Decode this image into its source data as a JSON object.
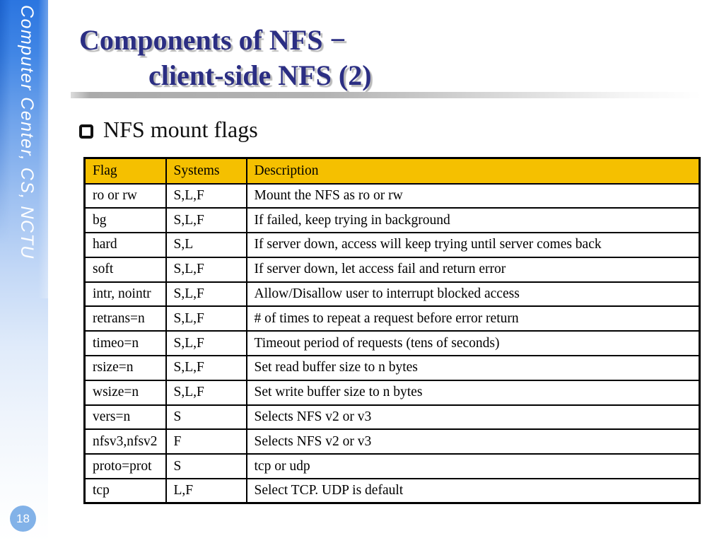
{
  "sidebar": {
    "text": "Computer Center, CS, NCTU"
  },
  "page_badge": {
    "number": "18"
  },
  "title": {
    "line1": "Components of NFS −",
    "line2": "client-side NFS (2)"
  },
  "content": {
    "bullet_text": "NFS mount flags"
  },
  "table": {
    "headers": [
      "Flag",
      "Systems",
      "Description"
    ],
    "rows": [
      [
        "ro or rw",
        "S,L,F",
        "Mount the NFS as ro or rw"
      ],
      [
        "bg",
        "S,L,F",
        "If failed, keep trying in background"
      ],
      [
        "hard",
        "S,L",
        "If server down, access will keep trying until server comes back"
      ],
      [
        "soft",
        "S,L,F",
        "If server down, let access fail and return error"
      ],
      [
        "intr, nointr",
        "S,L,F",
        "Allow/Disallow user to interrupt blocked access"
      ],
      [
        "retrans=n",
        "S,L,F",
        "# of times to repeat a request before error return"
      ],
      [
        "timeo=n",
        "S,L,F",
        "Timeout period of requests (tens of seconds)"
      ],
      [
        "rsize=n",
        "S,L,F",
        "Set read buffer size to n bytes"
      ],
      [
        "wsize=n",
        "S,L,F",
        "Set write buffer size to n bytes"
      ],
      [
        "vers=n",
        "S",
        "Selects NFS v2 or v3"
      ],
      [
        "nfsv3,nfsv2",
        "F",
        "Selects NFS v2 or v3"
      ],
      [
        "proto=prot",
        "S",
        "tcp or udp"
      ],
      [
        "tcp",
        "L,F",
        "Select TCP. UDP is default"
      ]
    ]
  },
  "colors": {
    "title-text": "#2b2e83",
    "title-shadow": "#b9b9b9",
    "header-bg": "#f5c000",
    "sidebar-top": "#2b75e0",
    "badge-bg": "#82b2e8",
    "rule-gray": "#ababab"
  }
}
